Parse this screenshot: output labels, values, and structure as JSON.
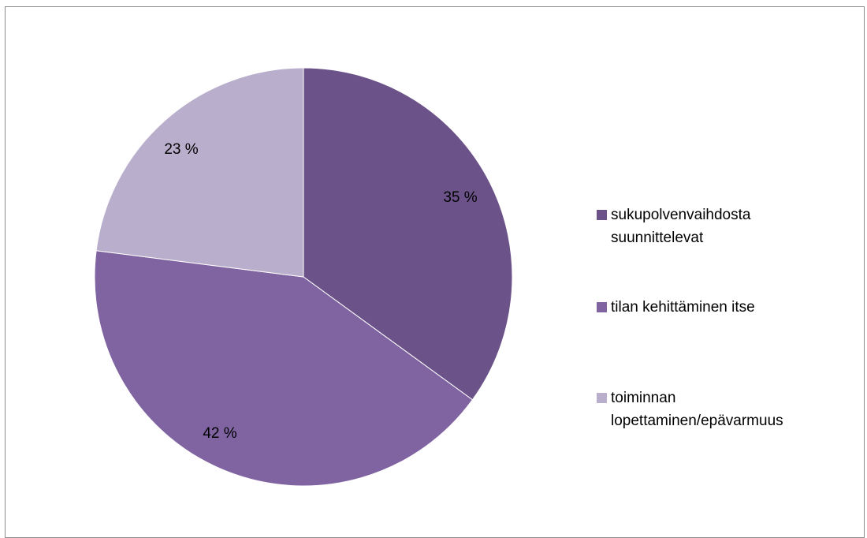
{
  "chart_data": {
    "type": "pie",
    "title": "",
    "categories": [
      "sukupolvenvaihdosta suunnittelevat",
      "tilan kehittäminen itse",
      "toiminnan lopettaminen/epävarmuus"
    ],
    "values": [
      35,
      42,
      23
    ],
    "value_labels": [
      "35 %",
      "42 %",
      "23 %"
    ],
    "colors": [
      "#6b5289",
      "#8064a2",
      "#b9aecb"
    ],
    "legend_position": "right",
    "start_angle": "12 o'clock",
    "direction": "clockwise"
  },
  "legend": {
    "items": [
      {
        "label": "sukupolvenvaihdosta\nsuunnittelevat",
        "color": "#6b5289"
      },
      {
        "label": "tilan kehittäminen itse",
        "color": "#8064a2"
      },
      {
        "label": "toiminnan\nlopettaminen/epävarmuus",
        "color": "#b9aecb"
      }
    ]
  }
}
